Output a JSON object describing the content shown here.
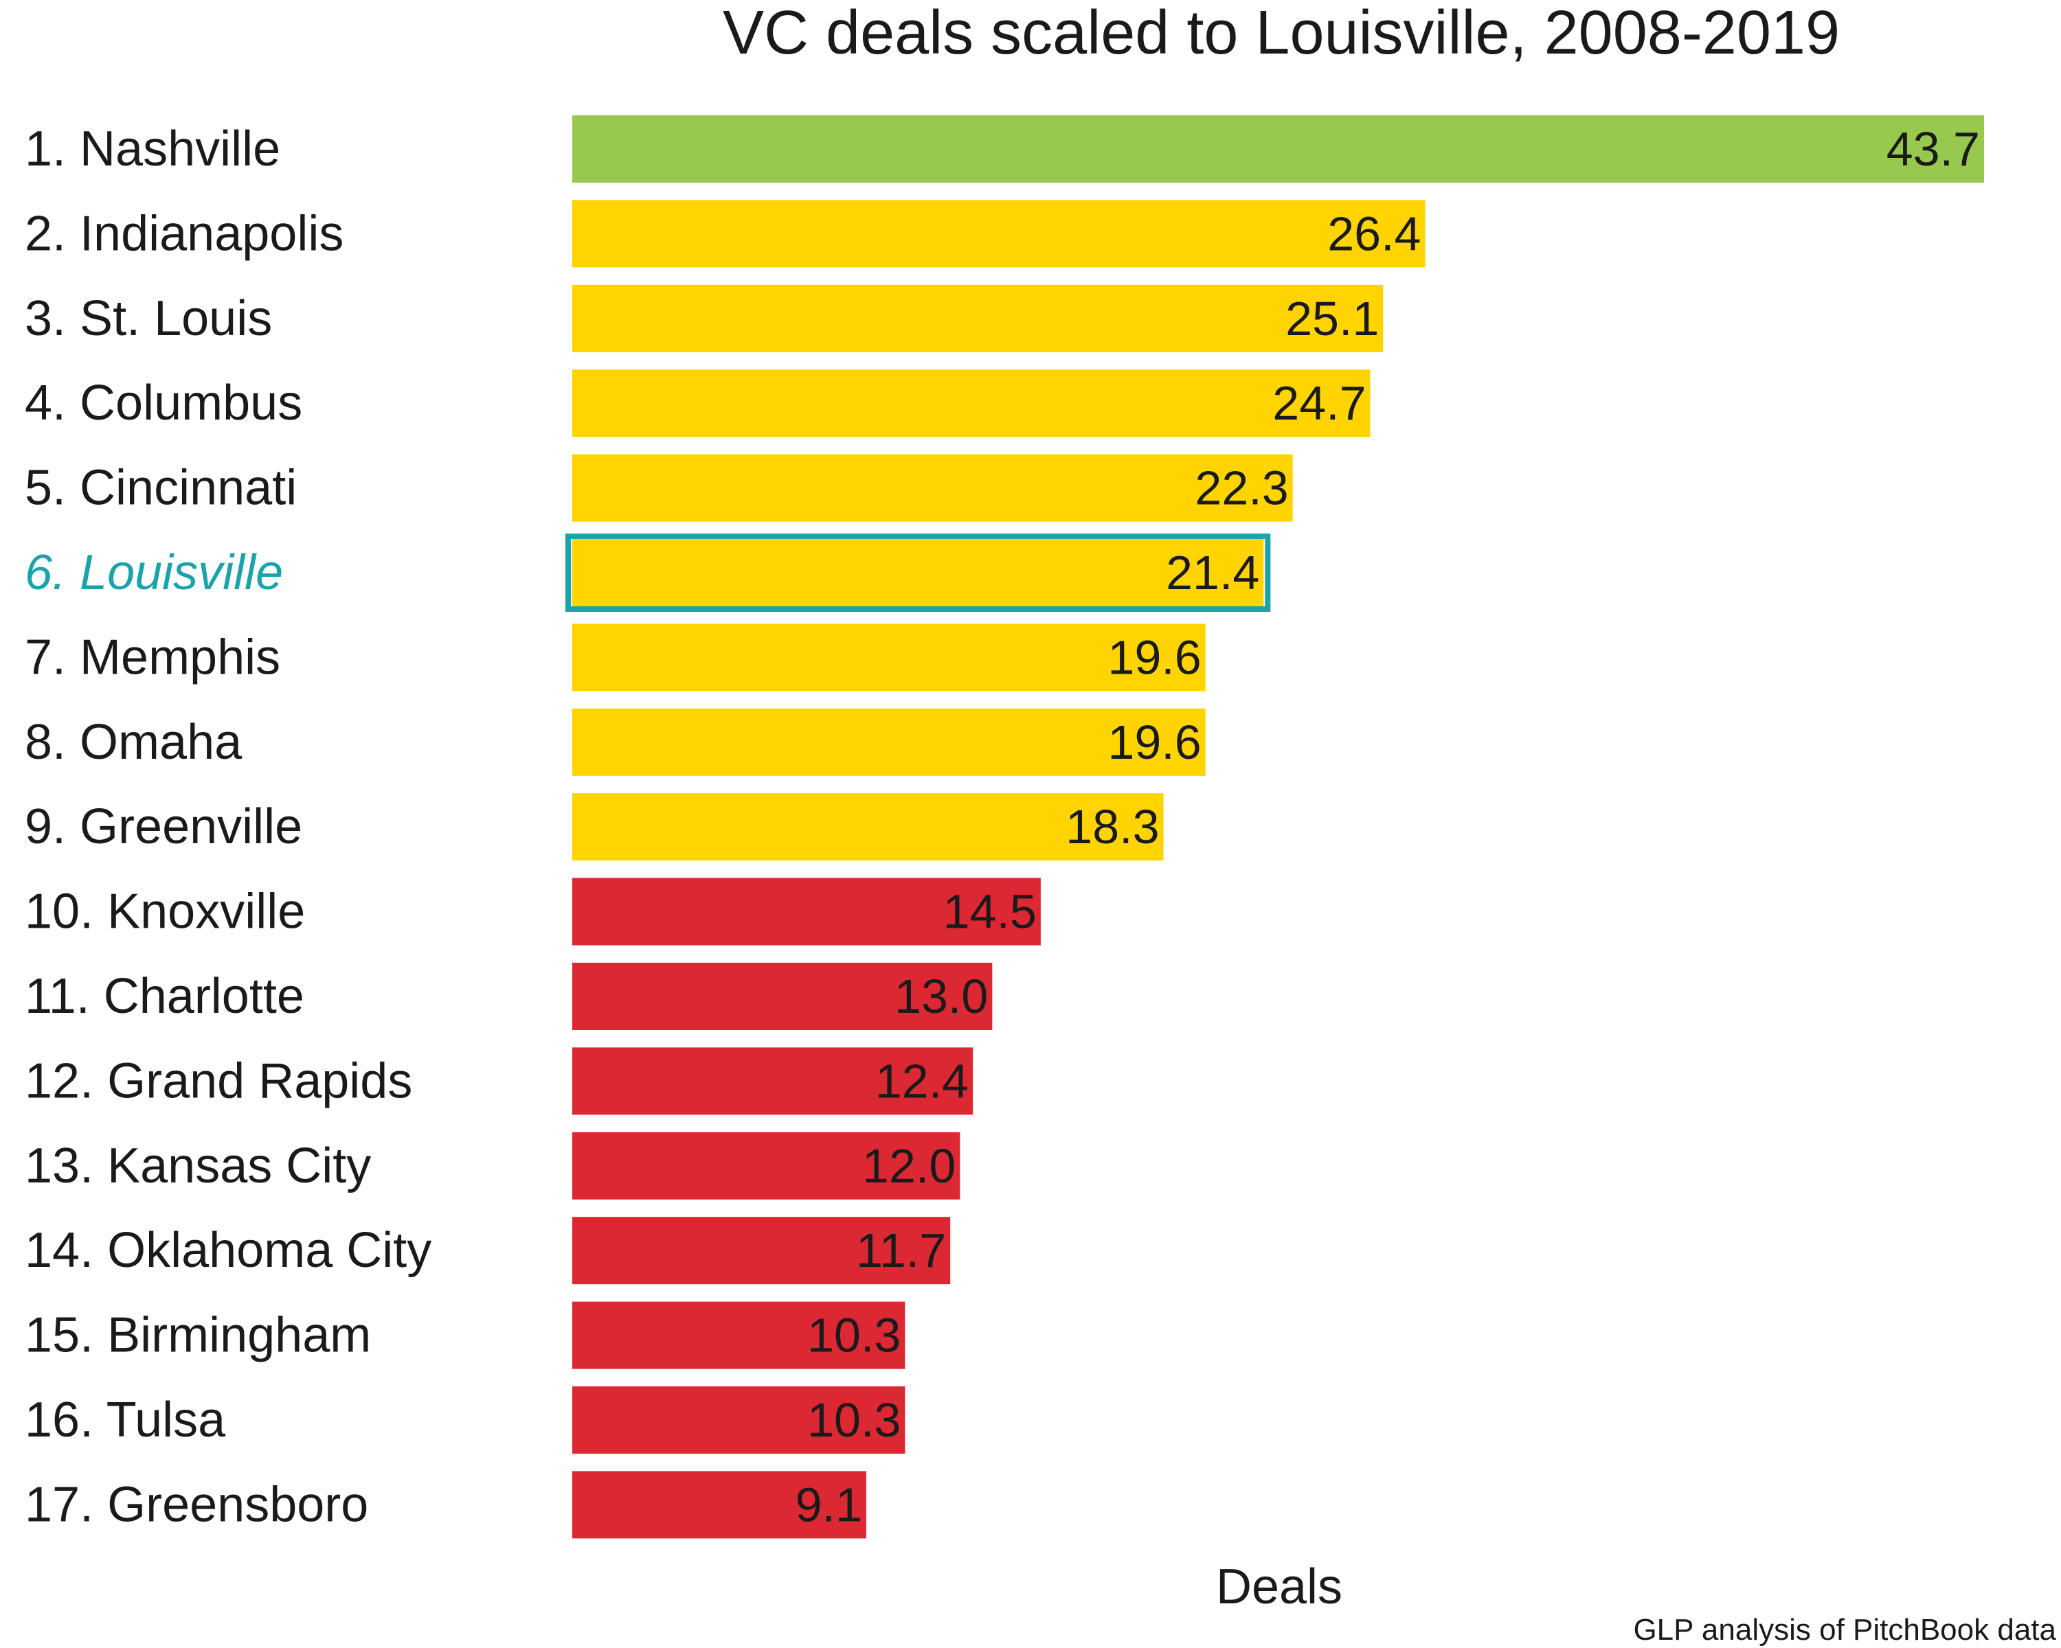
{
  "chart_data": {
    "type": "bar",
    "orientation": "horizontal",
    "title": "VC deals scaled to Louisville, 2008-2019",
    "xlabel": "Deals",
    "ylabel": "",
    "source": "GLP analysis of PitchBook data",
    "xlim": [
      0,
      43.7
    ],
    "grid": false,
    "legend": "none",
    "highlight_category": "6. Louisville",
    "categories": [
      "1. Nashville",
      "2. Indianapolis",
      "3. St. Louis",
      "4. Columbus",
      "5. Cincinnati",
      "6. Louisville",
      "7. Memphis",
      "8. Omaha",
      "9. Greenville",
      "10. Knoxville",
      "11. Charlotte",
      "12. Grand Rapids",
      "13. Kansas City",
      "14. Oklahoma City",
      "15. Birmingham",
      "16. Tulsa",
      "17. Greensboro"
    ],
    "values": [
      43.7,
      26.4,
      25.1,
      24.7,
      22.3,
      21.4,
      19.6,
      19.6,
      18.3,
      14.5,
      13.0,
      12.4,
      12.0,
      11.7,
      10.3,
      10.3,
      9.1
    ],
    "value_labels": [
      "43.7",
      "26.4",
      "25.1",
      "24.7",
      "22.3",
      "21.4",
      "19.6",
      "19.6",
      "18.3",
      "14.5",
      "13.0",
      "12.4",
      "12.0",
      "11.7",
      "10.3",
      "10.3",
      "9.1"
    ],
    "bar_colors": [
      "#96c94e",
      "#ffd400",
      "#ffd400",
      "#ffd400",
      "#ffd400",
      "#ffd400",
      "#ffd400",
      "#ffd400",
      "#ffd400",
      "#dc2833",
      "#dc2833",
      "#dc2833",
      "#dc2833",
      "#dc2833",
      "#dc2833",
      "#dc2833",
      "#dc2833"
    ],
    "highlight_color": "#1aa3a8"
  }
}
